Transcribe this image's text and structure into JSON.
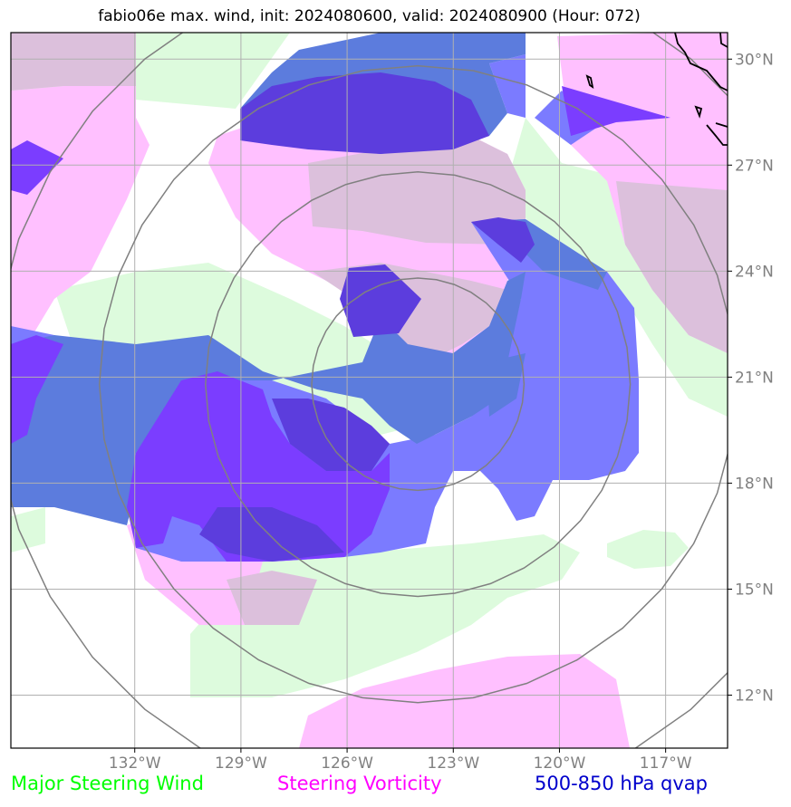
{
  "header": {
    "title": "fabio06e max. wind, init: 2024080600, valid: 2024080900 (Hour: 072)"
  },
  "map": {
    "lon_range": [
      -135.5,
      -115.25
    ],
    "lat_range": [
      10.5,
      30.75
    ],
    "center": {
      "lon": -124.0,
      "lat": 20.8
    },
    "range_rings_deg": [
      3,
      6,
      9,
      12
    ],
    "lon_ticks": [
      {
        "lon": -132,
        "label": "132°W"
      },
      {
        "lon": -129,
        "label": "129°W"
      },
      {
        "lon": -126,
        "label": "126°W"
      },
      {
        "lon": -123,
        "label": "123°W"
      },
      {
        "lon": -120,
        "label": "120°W"
      },
      {
        "lon": -117,
        "label": "117°W"
      }
    ],
    "lat_ticks": [
      {
        "lat": 30,
        "label": "30°N"
      },
      {
        "lat": 27,
        "label": "27°N"
      },
      {
        "lat": 24,
        "label": "24°N"
      },
      {
        "lat": 21,
        "label": "21°N"
      },
      {
        "lat": 18,
        "label": "18°N"
      },
      {
        "lat": 15,
        "label": "15°N"
      },
      {
        "lat": 12,
        "label": "12°N"
      }
    ],
    "colors": {
      "steering_wind": "#ddfbdd",
      "vorticity": "#ffc0ff",
      "overlap": "#dcc0dc",
      "qvap_light": "#7b7bff",
      "qvap_medium": "#5c7cdd",
      "qvap_dark": "#7b3dff",
      "qvap_darkest": "#5c3ddd",
      "grid": "#b0b0b0",
      "rings": "#808080",
      "coast": "#000000"
    }
  },
  "legend": {
    "steering_wind": {
      "label": "Major Steering Wind",
      "color": "#00ff00"
    },
    "vorticity": {
      "label": "Steering Vorticity",
      "color": "#ff00ff"
    },
    "qvap": {
      "label": "500-850 hPa qvap",
      "color": "#0000cc"
    }
  }
}
